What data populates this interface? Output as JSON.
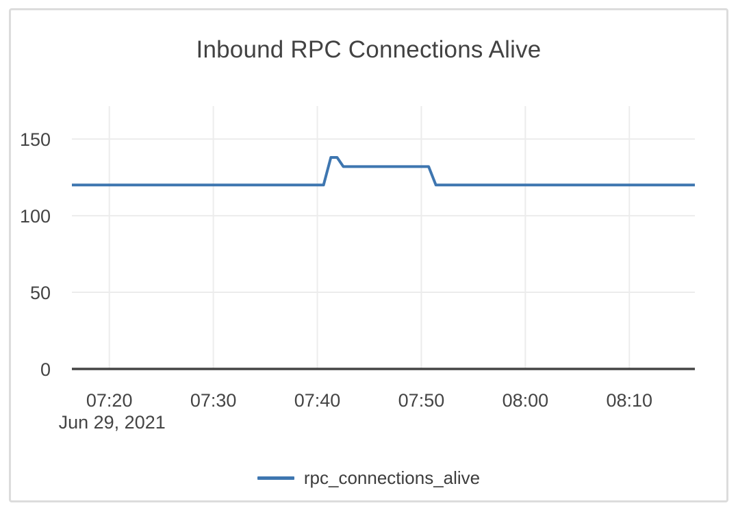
{
  "colors": {
    "series_line": "#3e76b0",
    "gridline": "#ececec",
    "axis_line": "#444444",
    "text": "#424242",
    "tick_text": "#444444",
    "card_border": "#dcdcdc"
  },
  "chart_data": {
    "type": "line",
    "title": "Inbound RPC Connections Alive",
    "x_axis": {
      "date_label": "Jun 29, 2021",
      "tick_labels": [
        "07:20",
        "07:30",
        "07:40",
        "07:50",
        "08:00",
        "08:10"
      ],
      "tick_minutes": [
        20,
        30,
        40,
        50,
        60,
        70
      ],
      "range_minutes": [
        16.4,
        76.3
      ],
      "unit": "time of day (minutes encoded after 07:00), Jun 29, 2021"
    },
    "y_axis": {
      "ticks": [
        0,
        50,
        100,
        150
      ],
      "range": [
        0,
        171.5
      ]
    },
    "grid": true,
    "legend_position": "bottom-center",
    "series": [
      {
        "name": "rpc_connections_alive",
        "color": "#3e76b0",
        "points": [
          [
            16.4,
            120
          ],
          [
            40.6,
            120
          ],
          [
            41.3,
            138
          ],
          [
            41.9,
            138
          ],
          [
            42.5,
            132
          ],
          [
            50.7,
            132
          ],
          [
            51.4,
            120
          ],
          [
            76.3,
            120
          ]
        ]
      }
    ]
  }
}
